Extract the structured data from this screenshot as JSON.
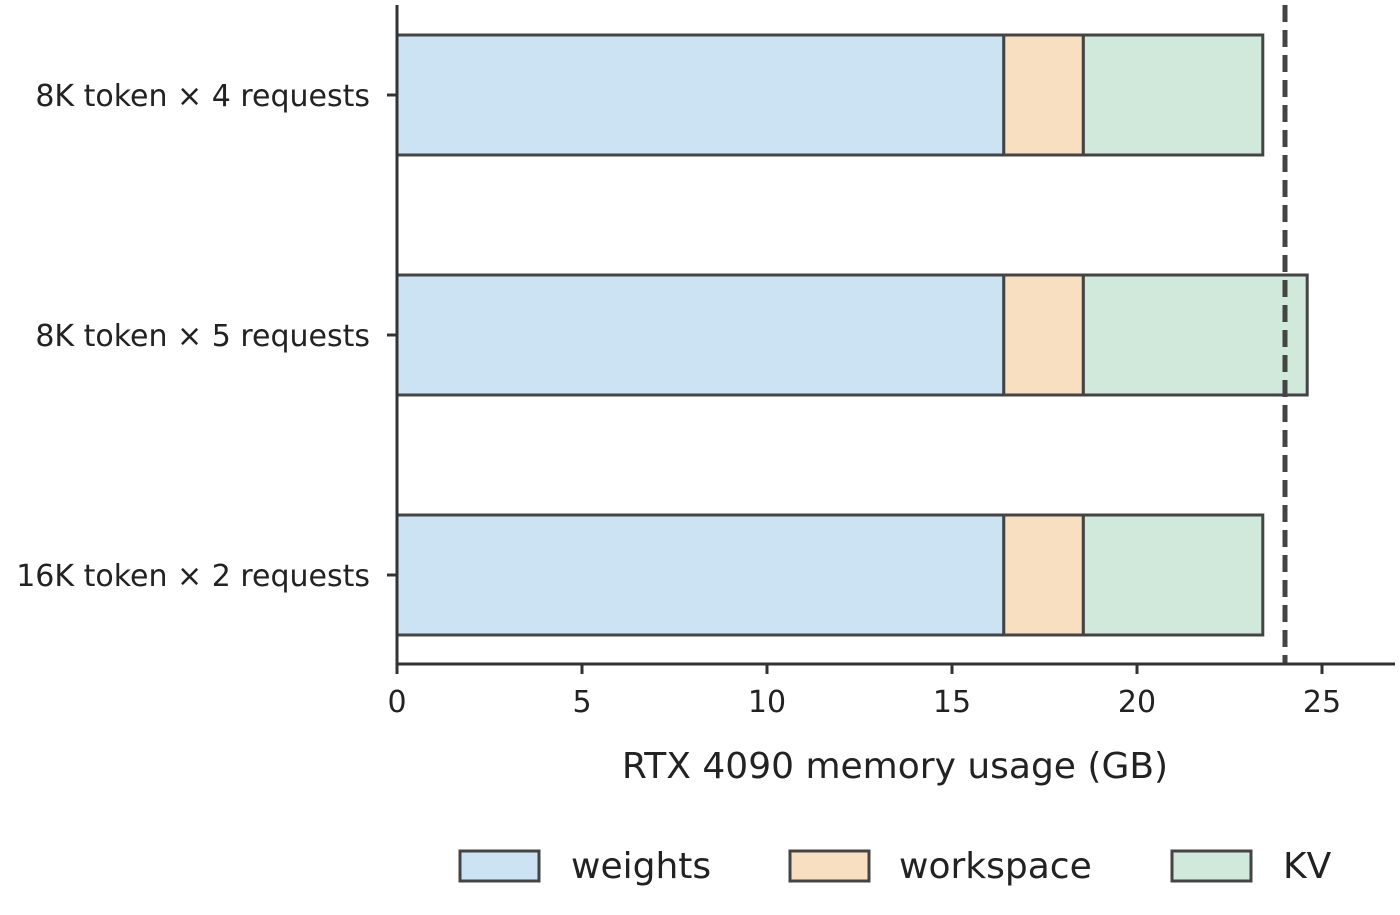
{
  "chart_data": {
    "type": "bar",
    "orientation": "horizontal",
    "stacked": true,
    "categories": [
      "8K token × 4 requests",
      "8K token × 5 requests",
      "16K token × 2 requests"
    ],
    "series": [
      {
        "name": "weights",
        "values": [
          16.4,
          16.4,
          16.4
        ],
        "color": "#cce3f3"
      },
      {
        "name": "workspace",
        "values": [
          2.15,
          2.15,
          2.15
        ],
        "color": "#f8dfc2"
      },
      {
        "name": "KV",
        "values": [
          4.85,
          6.05,
          4.85
        ],
        "color": "#d1e9da"
      }
    ],
    "xlabel": "RTX 4090 memory usage (GB)",
    "ylabel": "",
    "xlim": [
      0,
      27
    ],
    "xticks": [
      0,
      5,
      10,
      15,
      20,
      25
    ],
    "reference_line": {
      "x": 24,
      "style": "dashed"
    },
    "bar_edge_color": "#444444",
    "grid": false,
    "legend_position": "bottom"
  }
}
